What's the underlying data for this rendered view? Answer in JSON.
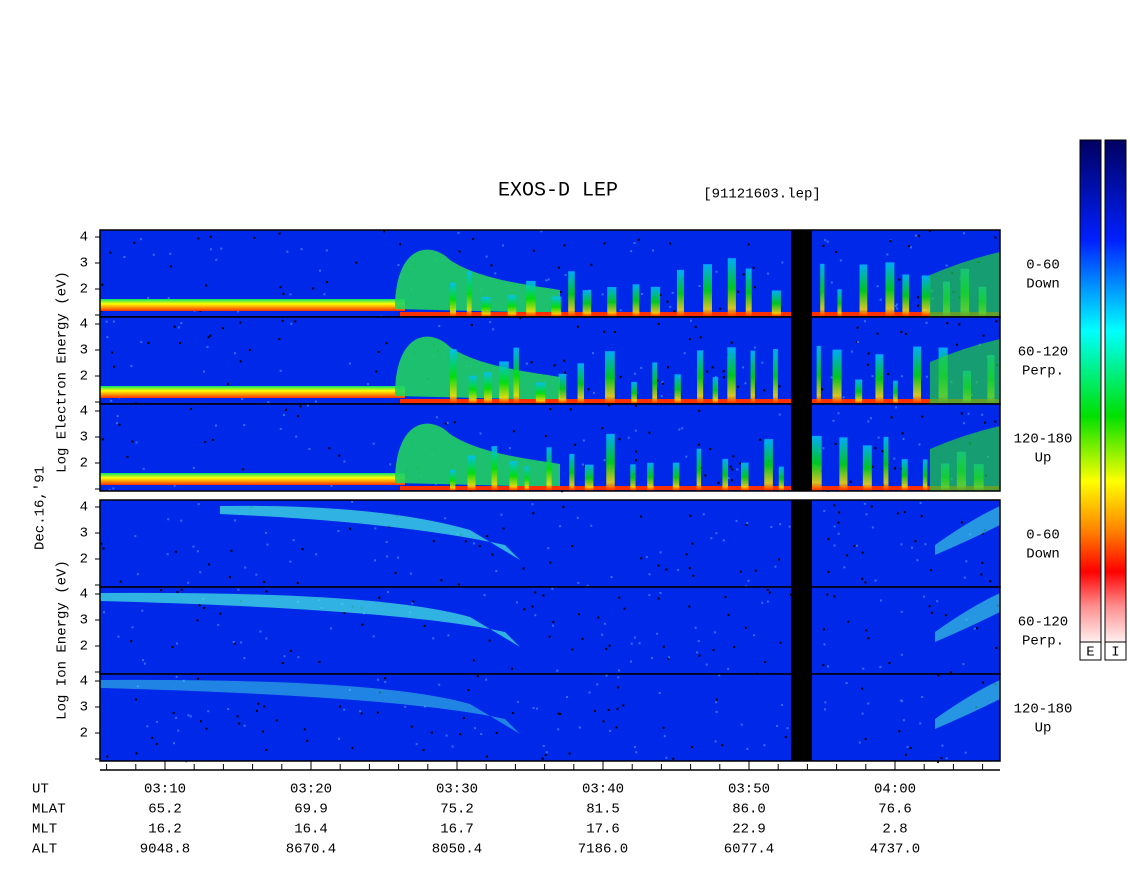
{
  "header": {
    "title": "EXOS-D LEP",
    "file": "[91121603.lep]"
  },
  "axis_labels": {
    "electron": "Log Electron Energy (eV)",
    "ion": "Log Ion Energy (eV)",
    "date": "Dec.16,'91"
  },
  "electron_panels": [
    {
      "yticks": [
        "4",
        "3",
        "2"
      ],
      "range": "0-60",
      "direction": "Down"
    },
    {
      "yticks": [
        "4",
        "3",
        "2"
      ],
      "range": "60-120",
      "direction": "Perp."
    },
    {
      "yticks": [
        "4",
        "3",
        "2"
      ],
      "range": "120-180",
      "direction": "Up"
    }
  ],
  "ion_panels": [
    {
      "yticks": [
        "4",
        "3",
        "2"
      ],
      "range": "0-60",
      "direction": "Down"
    },
    {
      "yticks": [
        "4",
        "3",
        "2"
      ],
      "range": "60-120",
      "direction": "Perp."
    },
    {
      "yticks": [
        "4",
        "3",
        "2"
      ],
      "range": "120-180",
      "direction": "Up"
    }
  ],
  "orbit_table": {
    "rows": [
      {
        "name": "UT",
        "values": [
          "03:10",
          "03:20",
          "03:30",
          "03:40",
          "03:50",
          "04:00"
        ]
      },
      {
        "name": "MLAT",
        "values": [
          "65.2",
          "69.9",
          "75.2",
          "81.5",
          "86.0",
          "76.6"
        ]
      },
      {
        "name": "MLT",
        "values": [
          "16.2",
          "16.4",
          "16.7",
          "17.6",
          "22.9",
          "2.8"
        ]
      },
      {
        "name": "ALT",
        "values": [
          "9048.8",
          "8670.4",
          "8050.4",
          "7186.0",
          "6077.4",
          "4737.0"
        ]
      }
    ]
  },
  "colorbars": [
    "E",
    "I"
  ]
}
